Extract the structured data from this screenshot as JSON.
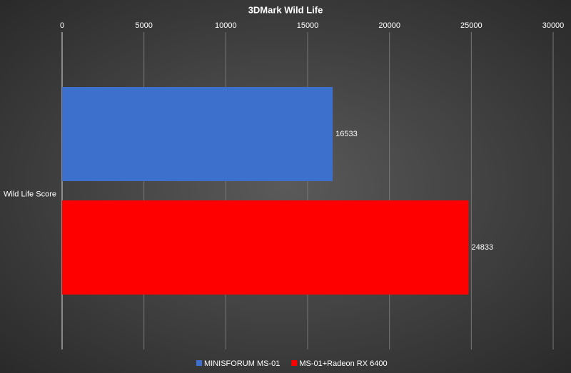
{
  "chart_data": {
    "type": "hbar",
    "title": "3DMark Wild Life",
    "categories": [
      "Wild Life Score"
    ],
    "series": [
      {
        "name": "MINISFORUM MS-01",
        "color": "#3d6fcc",
        "values": [
          16533
        ]
      },
      {
        "name": "MS-01+Radeon RX 6400",
        "color": "#ff0000",
        "values": [
          24833
        ]
      }
    ],
    "xlim": [
      0,
      30000
    ],
    "xticks": [
      0,
      5000,
      10000,
      15000,
      20000,
      25000,
      30000
    ],
    "grid": true
  }
}
